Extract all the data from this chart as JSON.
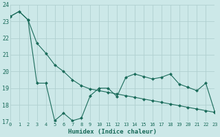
{
  "title": "",
  "xlabel": "Humidex (Indice chaleur)",
  "ylabel": "",
  "bg_color": "#cce8e8",
  "grid_color": "#b0d0d0",
  "line_color": "#1a6b5a",
  "line1_y": [
    23.3,
    23.6,
    23.1,
    19.3,
    19.3,
    17.05,
    17.5,
    17.05,
    17.2,
    18.55,
    19.0,
    19.0,
    18.5,
    19.65,
    19.85,
    19.7,
    19.55,
    19.65,
    19.85,
    19.25,
    19.05,
    18.85,
    19.3,
    17.6
  ],
  "line2_y": [
    23.3,
    23.6,
    23.1,
    21.7,
    21.1,
    20.4,
    20.0,
    19.5,
    19.15,
    18.95,
    18.85,
    18.75,
    18.65,
    18.55,
    18.45,
    18.35,
    18.25,
    18.15,
    18.05,
    17.95,
    17.85,
    17.75,
    17.65,
    17.55
  ],
  "ylim": [
    17,
    24
  ],
  "xlim": [
    0,
    23
  ],
  "yticks": [
    17,
    18,
    19,
    20,
    21,
    22,
    23,
    24
  ],
  "xticks": [
    0,
    1,
    2,
    3,
    4,
    5,
    6,
    7,
    8,
    9,
    10,
    11,
    12,
    13,
    14,
    15,
    16,
    17,
    18,
    19,
    20,
    21,
    22,
    23
  ],
  "markersize": 2.5,
  "linewidth": 0.8
}
